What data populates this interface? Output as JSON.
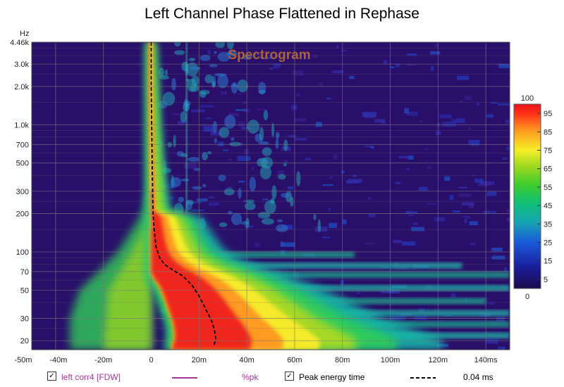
{
  "chart_data": {
    "type": "heatmap",
    "title": "Left Channel Phase Flattened in Rephase",
    "watermark": "Spectrogram",
    "x_tick_labels": [
      "-50m",
      "-40m",
      "-20m",
      "0",
      "20m",
      "40m",
      "60m",
      "80m",
      "100m",
      "120m",
      "140ms"
    ],
    "x_tick_values": [
      -50,
      -40,
      -20,
      0,
      20,
      40,
      60,
      80,
      100,
      120,
      140
    ],
    "xlim": [
      -50,
      150
    ],
    "y_unit": "Hz",
    "y_scale": "log",
    "y_tick_labels": [
      "4.46k",
      "3.0k",
      "2.0k",
      "1.0k",
      "700",
      "500",
      "300",
      "200",
      "100",
      "70",
      "50",
      "30",
      "20"
    ],
    "y_tick_values": [
      4460,
      3000,
      2000,
      1000,
      700,
      500,
      300,
      200,
      100,
      70,
      50,
      30,
      20
    ],
    "ylim": [
      17,
      4460
    ],
    "colorbar": {
      "max_label": "100",
      "min_label": "0",
      "tick_labels": [
        "95",
        "85",
        "75",
        "65",
        "55",
        "45",
        "35",
        "25",
        "15",
        "5"
      ],
      "tick_values": [
        95,
        85,
        75,
        65,
        55,
        45,
        35,
        25,
        15,
        5
      ],
      "range": [
        0,
        100
      ]
    },
    "peak_energy_time": {
      "frequencies": [
        4460,
        2000,
        1000,
        500,
        300,
        200,
        150,
        110,
        90,
        80,
        72,
        65,
        55,
        45,
        38,
        32,
        28,
        24,
        21,
        19,
        18
      ],
      "times": [
        0,
        0,
        0.2,
        0.4,
        0.6,
        0.8,
        1.2,
        2.0,
        3.5,
        5.5,
        9,
        13,
        17,
        20,
        22,
        24,
        25.5,
        26.5,
        27,
        26.5,
        26
      ]
    },
    "energy_tail": {
      "frequencies": [
        4460,
        1000,
        500,
        200,
        100,
        70,
        50,
        30,
        20
      ],
      "times": [
        3,
        6,
        8,
        12,
        18,
        26,
        34,
        45,
        60
      ]
    },
    "resonance_bands": {
      "frequencies": [
        22,
        27,
        33,
        41,
        52,
        66,
        78,
        95
      ],
      "decay_end_times": [
        150,
        150,
        150,
        140,
        150,
        150,
        130,
        85
      ]
    },
    "legend": [
      {
        "label": "left corr4 [FDW]",
        "checked": true,
        "line_color": "#aa3399",
        "value": "%pk"
      },
      {
        "label": "Peak energy time",
        "checked": true,
        "line_color": "#000000",
        "value": "0.04 ms"
      }
    ]
  }
}
